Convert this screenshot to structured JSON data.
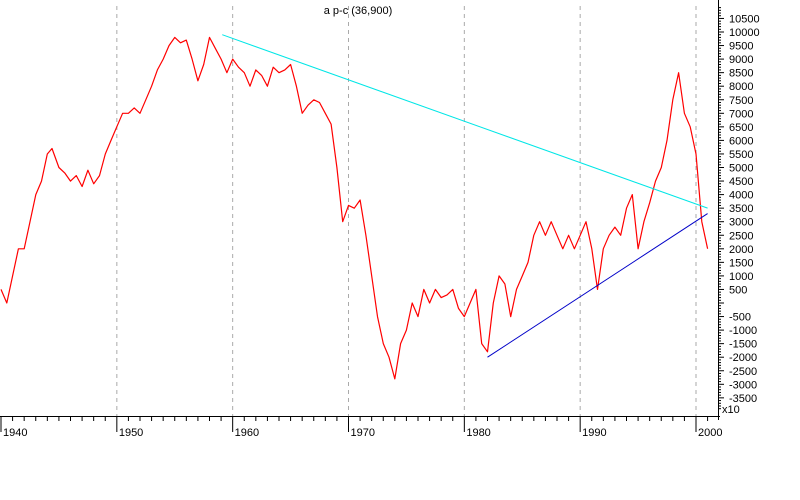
{
  "chart_data": {
    "type": "line",
    "title": "a p-c (36,900)",
    "xlabel": "",
    "ylabel": "",
    "x_ticks": [
      "1940",
      "1950",
      "1960",
      "1970",
      "1980",
      "1990",
      "2000"
    ],
    "y_ticks": [
      10500,
      10000,
      9500,
      9000,
      8500,
      8000,
      7500,
      7000,
      6500,
      6000,
      5500,
      5000,
      4500,
      4000,
      3500,
      3000,
      2500,
      2000,
      1500,
      1000,
      500,
      -500,
      -1000,
      -1500,
      -2000,
      -2500,
      -3000,
      -3500
    ],
    "multiplier_label": "x10",
    "xlim": [
      1939.9,
      2001.0
    ],
    "ylim": [
      -4000,
      11000
    ],
    "grid": "vertical dashed at decades",
    "legend": "none",
    "colors": {
      "series": "#ff0000",
      "upper_trendline": "#00e6e6",
      "lower_trendline": "#0000c8",
      "grid": "#aaaaaa",
      "axis": "#000000"
    },
    "series": [
      {
        "x": [
          1940.0,
          1940.5,
          1941.0,
          1941.5,
          1942.0,
          1942.5,
          1943.0,
          1943.5,
          1944.0,
          1944.4,
          1945.0,
          1945.5,
          1946.0,
          1946.5,
          1947.0,
          1947.5,
          1948.0,
          1948.5,
          1949.0,
          1949.5,
          1950.0,
          1950.5,
          1951.0,
          1951.5,
          1952.0,
          1952.5,
          1953.0,
          1953.5,
          1954.0,
          1954.5,
          1955.0,
          1955.5,
          1956.0,
          1956.5,
          1957.0,
          1957.5,
          1958.0,
          1958.5,
          1959.0,
          1959.5,
          1960.0,
          1960.5,
          1961.0,
          1961.5,
          1962.0,
          1962.5,
          1963.0,
          1963.5,
          1964.0,
          1964.5,
          1965.0,
          1965.5,
          1966.0,
          1966.5,
          1967.0,
          1967.5,
          1968.0,
          1968.5,
          1969.0,
          1969.5,
          1970.0,
          1970.5,
          1971.0,
          1971.5,
          1972.0,
          1972.5,
          1973.0,
          1973.5,
          1974.0,
          1974.5,
          1975.0,
          1975.5,
          1976.0,
          1976.5,
          1977.0,
          1977.5,
          1978.0,
          1978.5,
          1979.0,
          1979.5,
          1980.0,
          1980.5,
          1981.0,
          1981.5,
          1982.0,
          1982.5,
          1983.0,
          1983.5,
          1984.0,
          1984.5,
          1985.0,
          1985.5,
          1986.0,
          1986.5,
          1987.0,
          1987.5,
          1988.0,
          1988.5,
          1989.0,
          1989.5,
          1990.0,
          1990.5,
          1991.0,
          1991.5,
          1992.0,
          1992.5,
          1993.0,
          1993.5,
          1994.0,
          1994.5,
          1995.0,
          1995.5,
          1996.0,
          1996.5,
          1997.0,
          1997.5,
          1998.0,
          1998.5,
          1999.0,
          1999.5,
          2000.0,
          2000.5,
          2001.0
        ],
        "values": [
          500,
          0,
          1000,
          2000,
          2000,
          3000,
          4000,
          4500,
          5500,
          5700,
          5000,
          4800,
          4500,
          4700,
          4300,
          4900,
          4400,
          4700,
          5500,
          6000,
          6500,
          7000,
          7000,
          7200,
          7000,
          7500,
          8000,
          8600,
          9000,
          9500,
          9800,
          9600,
          9700,
          9000,
          8200,
          8800,
          9800,
          9400,
          9000,
          8500,
          9000,
          8700,
          8500,
          8000,
          8600,
          8400,
          8000,
          8700,
          8500,
          8600,
          8800,
          8000,
          7000,
          7300,
          7500,
          7400,
          7000,
          6600,
          5000,
          3000,
          3600,
          3500,
          3800,
          2500,
          1000,
          -500,
          -1500,
          -2000,
          -2800,
          -1500,
          -1000,
          0,
          -500,
          500,
          0,
          500,
          200,
          300,
          500,
          -200,
          -500,
          0,
          500,
          -1500,
          -1800,
          0,
          1000,
          700,
          -500,
          500,
          1000,
          1500,
          2500,
          3000,
          2500,
          3000,
          2500,
          2000,
          2500,
          2000,
          2500,
          3000,
          2000,
          500,
          2000,
          2500,
          2800,
          2500,
          3500,
          4000,
          2000,
          3000,
          3700,
          4500,
          5000,
          6000,
          7500,
          8500,
          7000,
          6500,
          5500,
          3000,
          2000
        ]
      }
    ],
    "trendlines": [
      {
        "name": "upper",
        "x": [
          1959.1,
          2001.0
        ],
        "y": [
          9900,
          3500
        ]
      },
      {
        "name": "lower",
        "x": [
          1982.0,
          2001.0
        ],
        "y": [
          -2000,
          3300
        ]
      }
    ]
  }
}
